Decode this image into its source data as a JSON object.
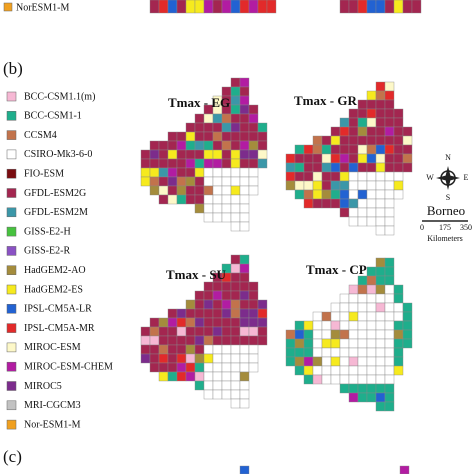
{
  "top_legend": {
    "label": "NorESM1-M",
    "color": "#f0a020"
  },
  "panel_label": "(b)",
  "legend": [
    {
      "label": "BCC-CSM1.1(m)",
      "color": "#f6b8d4"
    },
    {
      "label": "BCC-CSM1-1",
      "color": "#1fae8c"
    },
    {
      "label": "CCSM4",
      "color": "#c2734c"
    },
    {
      "label": "CSIRO-Mk3-6-0",
      "color": "#ffffff"
    },
    {
      "label": "FIO-ESM",
      "color": "#7a0c10"
    },
    {
      "label": "GFDL-ESM2G",
      "color": "#a32650"
    },
    {
      "label": "GFDL-ESM2M",
      "color": "#3b97a8"
    },
    {
      "label": "GISS-E2-H",
      "color": "#46c23e"
    },
    {
      "label": "GISS-E2-R",
      "color": "#8a52c4"
    },
    {
      "label": "HadGEM2-AO",
      "color": "#a48c3c"
    },
    {
      "label": "HadGEM2-ES",
      "color": "#f6ea1e"
    },
    {
      "label": "IPSL-CM5A-LR",
      "color": "#2262d2"
    },
    {
      "label": "IPSL-CM5A-MR",
      "color": "#e22a2a"
    },
    {
      "label": "MIROC-ESM",
      "color": "#fdf8c8"
    },
    {
      "label": "MIROC-ESM-CHEM",
      "color": "#b21ca2"
    },
    {
      "label": "MIROC5",
      "color": "#7c2c8c"
    },
    {
      "label": "MRI-CGCM3",
      "color": "#c2c2c2"
    },
    {
      "label": "Nor-ESM1-M",
      "color": "#f0a020"
    }
  ],
  "maps": [
    {
      "title": "Tmax - EG"
    },
    {
      "title": "Tmax - GR"
    },
    {
      "title": "Tmax - SU"
    },
    {
      "title": "Tmax - CP"
    }
  ],
  "compass": {
    "north": "N",
    "south": "S",
    "east": "E",
    "west": "W"
  },
  "region": "Borneo",
  "scale": {
    "ticks": [
      "0",
      "175",
      "350"
    ],
    "unit": "Kilometers"
  },
  "next_panel_label": "(c)"
}
